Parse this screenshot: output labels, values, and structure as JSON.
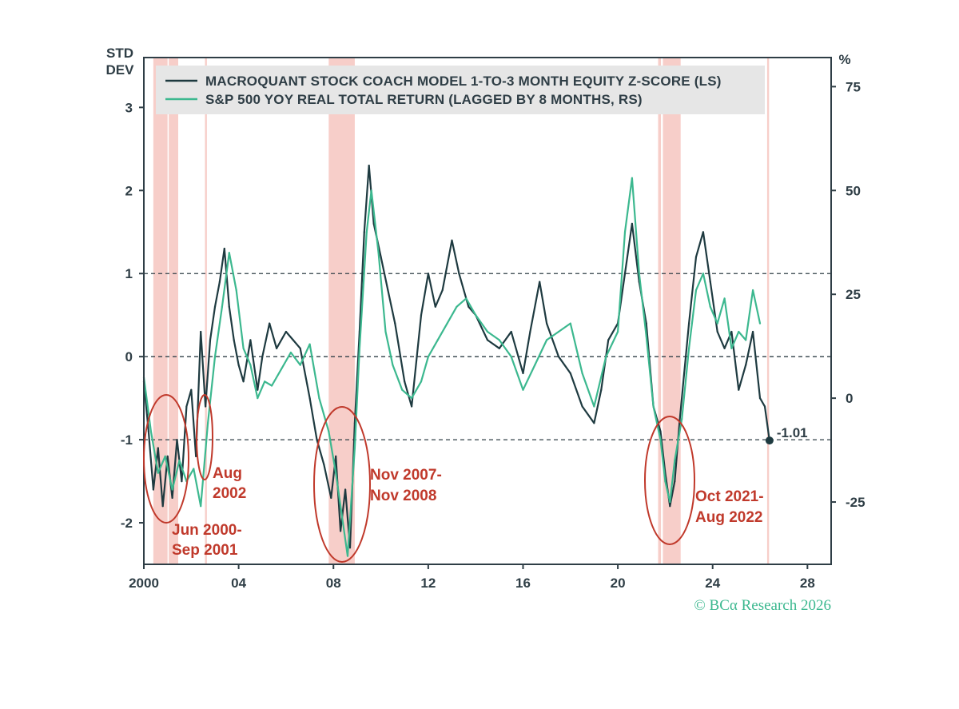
{
  "chart_data": {
    "type": "line",
    "ylabel_left": "STD\nDEV",
    "ylabel_right": "%",
    "xlim": [
      2000,
      2029
    ],
    "ylim_left": [
      -2.5,
      3.6
    ],
    "ylim_right": [
      -40,
      82
    ],
    "x_ticks": [
      2000,
      2004,
      2008,
      2012,
      2016,
      2020,
      2024,
      2028
    ],
    "x_tick_labels": [
      "2000",
      "04",
      "08",
      "12",
      "16",
      "20",
      "24",
      "28"
    ],
    "y_ticks_left": [
      -2,
      -1,
      0,
      1,
      2,
      3
    ],
    "y_tick_labels_left": [
      "-2",
      "-1",
      "0",
      "1",
      "2",
      "3"
    ],
    "y_ticks_right": [
      -25,
      0,
      25,
      50,
      75
    ],
    "y_tick_labels_right": [
      "-25",
      "0",
      "25",
      "50",
      "75"
    ],
    "reference_lines_left": [
      1,
      0,
      -1
    ],
    "grid": false,
    "legend_position": "top-left",
    "shaded_periods": [
      [
        2000.4,
        2001.0
      ],
      [
        2001.05,
        2001.45
      ],
      [
        2002.58,
        2002.66
      ],
      [
        2007.8,
        2008.9
      ],
      [
        2021.7,
        2021.82
      ],
      [
        2021.9,
        2022.65
      ],
      [
        2026.3,
        2026.38
      ]
    ],
    "series": [
      {
        "name": "MACROQUANT STOCK COACH MODEL 1-TO-3 MONTH EQUITY Z-SCORE (LS)",
        "axis": "left",
        "color": "#1e3a40",
        "x": [
          2000.0,
          2000.2,
          2000.4,
          2000.6,
          2000.8,
          2001.0,
          2001.2,
          2001.4,
          2001.6,
          2001.8,
          2002.0,
          2002.2,
          2002.4,
          2002.6,
          2002.8,
          2003.0,
          2003.2,
          2003.4,
          2003.6,
          2003.8,
          2004.0,
          2004.2,
          2004.5,
          2004.8,
          2005.0,
          2005.3,
          2005.6,
          2006.0,
          2006.3,
          2006.6,
          2007.0,
          2007.3,
          2007.6,
          2007.9,
          2008.1,
          2008.3,
          2008.5,
          2008.7,
          2008.9,
          2009.1,
          2009.3,
          2009.5,
          2009.7,
          2010.0,
          2010.3,
          2010.6,
          2011.0,
          2011.3,
          2011.7,
          2012.0,
          2012.3,
          2012.6,
          2013.0,
          2013.3,
          2013.7,
          2014.0,
          2014.5,
          2015.0,
          2015.5,
          2016.0,
          2016.3,
          2016.7,
          2017.0,
          2017.5,
          2018.0,
          2018.5,
          2019.0,
          2019.3,
          2019.6,
          2020.0,
          2020.3,
          2020.6,
          2020.9,
          2021.2,
          2021.5,
          2021.8,
          2022.0,
          2022.2,
          2022.4,
          2022.6,
          2022.8,
          2023.0,
          2023.3,
          2023.6,
          2023.9,
          2024.2,
          2024.5,
          2024.8,
          2025.1,
          2025.4,
          2025.7,
          2026.0,
          2026.2,
          2026.4
        ],
        "values": [
          -0.3,
          -0.9,
          -1.6,
          -1.1,
          -1.8,
          -1.2,
          -1.7,
          -1.0,
          -1.5,
          -0.6,
          -0.4,
          -1.2,
          0.3,
          -0.6,
          0.2,
          0.6,
          0.9,
          1.3,
          0.6,
          0.2,
          -0.1,
          -0.3,
          0.2,
          -0.4,
          0.0,
          0.4,
          0.1,
          0.3,
          0.2,
          0.1,
          -0.5,
          -1.0,
          -1.3,
          -1.7,
          -1.2,
          -2.1,
          -1.6,
          -2.3,
          -0.8,
          0.3,
          1.5,
          2.3,
          1.6,
          1.2,
          0.8,
          0.4,
          -0.3,
          -0.6,
          0.5,
          1.0,
          0.6,
          0.8,
          1.4,
          1.0,
          0.6,
          0.5,
          0.2,
          0.1,
          0.3,
          -0.2,
          0.3,
          0.9,
          0.4,
          0.0,
          -0.2,
          -0.6,
          -0.8,
          -0.4,
          0.2,
          0.4,
          1.0,
          1.6,
          0.9,
          0.4,
          -0.6,
          -0.9,
          -1.4,
          -1.8,
          -1.5,
          -0.8,
          -0.2,
          0.4,
          1.2,
          1.5,
          0.9,
          0.3,
          0.1,
          0.3,
          -0.4,
          -0.1,
          0.3,
          -0.5,
          -0.6,
          -1.01
        ]
      },
      {
        "name": "S&P 500 YOY REAL TOTAL RETURN (LAGGED BY 8 MONTHS, RS)",
        "axis": "right",
        "color": "#3cb88f",
        "x": [
          2000.0,
          2000.3,
          2000.6,
          2000.9,
          2001.2,
          2001.5,
          2001.8,
          2002.1,
          2002.4,
          2002.7,
          2003.0,
          2003.3,
          2003.6,
          2003.9,
          2004.2,
          2004.5,
          2004.8,
          2005.1,
          2005.4,
          2005.8,
          2006.2,
          2006.6,
          2007.0,
          2007.4,
          2007.8,
          2008.1,
          2008.4,
          2008.6,
          2008.9,
          2009.1,
          2009.4,
          2009.6,
          2009.9,
          2010.2,
          2010.5,
          2010.9,
          2011.3,
          2011.7,
          2012.0,
          2012.4,
          2012.8,
          2013.2,
          2013.6,
          2014.0,
          2014.5,
          2015.0,
          2015.5,
          2016.0,
          2016.5,
          2017.0,
          2017.5,
          2018.0,
          2018.5,
          2019.0,
          2019.5,
          2020.0,
          2020.3,
          2020.6,
          2020.9,
          2021.2,
          2021.5,
          2021.8,
          2022.0,
          2022.2,
          2022.4,
          2022.7,
          2023.0,
          2023.3,
          2023.6,
          2023.9,
          2024.2,
          2024.5,
          2024.8,
          2025.1,
          2025.4,
          2025.7,
          2026.0
        ],
        "values": [
          5,
          -8,
          -18,
          -14,
          -22,
          -15,
          -20,
          -17,
          -26,
          -6,
          10,
          22,
          35,
          26,
          12,
          8,
          0,
          4,
          3,
          7,
          11,
          8,
          13,
          0,
          -8,
          -18,
          -30,
          -38,
          -12,
          12,
          40,
          50,
          35,
          16,
          8,
          2,
          0,
          4,
          10,
          14,
          18,
          22,
          24,
          20,
          16,
          14,
          10,
          2,
          8,
          14,
          16,
          18,
          6,
          -2,
          10,
          16,
          40,
          53,
          30,
          15,
          -2,
          -10,
          -20,
          -25,
          -15,
          -5,
          12,
          26,
          30,
          22,
          18,
          24,
          12,
          16,
          14,
          26,
          18
        ]
      }
    ],
    "annotations": [
      {
        "text": [
          "Jun 2000-",
          "Sep 2001"
        ]
      },
      {
        "text": [
          "Aug",
          "2002"
        ]
      },
      {
        "text": [
          "Nov 2007-",
          "Nov 2008"
        ]
      },
      {
        "text": [
          "Oct 2021-",
          "Aug 2022"
        ]
      }
    ],
    "last_value_label": "-1.01",
    "last_value": -1.01,
    "last_value_x": 2026.4
  },
  "credit": "© BCα Research 2026",
  "colors": {
    "axis": "#2f3e46",
    "shade": "#f6c6c0",
    "annotation": "#c0392b",
    "legend_bg": "#e6e6e6"
  }
}
